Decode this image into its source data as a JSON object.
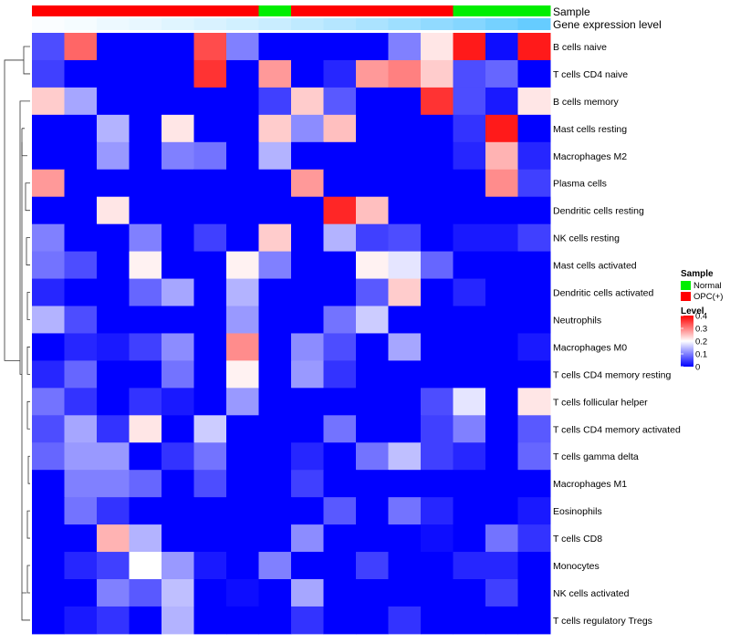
{
  "chart_data": {
    "type": "heatmap",
    "annotation_labels": {
      "sample": "Sample",
      "gene_expression": "Gene expression level"
    },
    "sample_groups": [
      "OPC(+)",
      "OPC(+)",
      "OPC(+)",
      "OPC(+)",
      "OPC(+)",
      "OPC(+)",
      "OPC(+)",
      "Normal",
      "OPC(+)",
      "OPC(+)",
      "OPC(+)",
      "OPC(+)",
      "OPC(+)",
      "Normal",
      "Normal",
      "Normal"
    ],
    "gene_expression_level": [
      0.02,
      0.04,
      0.07,
      0.09,
      0.12,
      0.15,
      0.18,
      0.21,
      0.25,
      0.29,
      0.33,
      0.38,
      0.43,
      0.48,
      0.54,
      0.6
    ],
    "rows": [
      "B cells naive",
      "T cells CD4 naive",
      "B cells memory",
      "Mast cells resting",
      "Macrophages M2",
      "Plasma cells",
      "Dendritic cells resting",
      "NK cells resting",
      "Mast cells activated",
      "Dendritic cells activated",
      "Neutrophils",
      "Macrophages M0",
      "T cells CD4 memory resting",
      "T cells follicular helper",
      "T cells CD4 memory activated",
      "T cells gamma delta",
      "Macrophages M1",
      "Eosinophils",
      "T cells CD8",
      "Monocytes",
      "NK cells activated",
      "T cells regulatory  Tregs"
    ],
    "values": [
      [
        0.06,
        0.32,
        0,
        0,
        0,
        0.34,
        0.1,
        0,
        0,
        0,
        0,
        0.1,
        0.22,
        0.38,
        0.01,
        0.38
      ],
      [
        0.05,
        0,
        0,
        0,
        0,
        0.36,
        0,
        0.28,
        0,
        0.03,
        0.28,
        0.3,
        0.24,
        0.06,
        0.08,
        0
      ],
      [
        0.24,
        0.13,
        0,
        0,
        0,
        0,
        0,
        0.05,
        0.24,
        0.07,
        0,
        0,
        0.36,
        0.06,
        0.02,
        0.22
      ],
      [
        0,
        0,
        0.14,
        0,
        0.22,
        0,
        0,
        0.24,
        0.11,
        0.25,
        0,
        0,
        0,
        0.04,
        0.38,
        0
      ],
      [
        0,
        0,
        0.12,
        0,
        0.1,
        0.09,
        0,
        0.14,
        0,
        0,
        0,
        0,
        0,
        0.03,
        0.26,
        0.03
      ],
      [
        0.28,
        0,
        0,
        0,
        0,
        0,
        0,
        0,
        0.28,
        0,
        0,
        0,
        0,
        0,
        0.29,
        0.05
      ],
      [
        0,
        0,
        0.22,
        0,
        0,
        0,
        0,
        0,
        0,
        0.37,
        0.25,
        0,
        0,
        0,
        0,
        0
      ],
      [
        0.1,
        0,
        0,
        0.1,
        0,
        0.05,
        0,
        0.24,
        0,
        0.14,
        0.05,
        0.06,
        0,
        0.02,
        0.02,
        0.05
      ],
      [
        0.09,
        0.06,
        0,
        0.21,
        0,
        0,
        0.21,
        0.1,
        0,
        0,
        0.21,
        0.18,
        0.08,
        0,
        0,
        0
      ],
      [
        0.03,
        0,
        0,
        0.08,
        0.13,
        0,
        0.14,
        0,
        0,
        0,
        0.07,
        0.24,
        0,
        0.03,
        0,
        0
      ],
      [
        0.14,
        0.06,
        0,
        0,
        0,
        0,
        0.12,
        0,
        0,
        0.09,
        0.16,
        0,
        0,
        0,
        0,
        0
      ],
      [
        0,
        0.03,
        0.02,
        0.05,
        0.11,
        0,
        0.29,
        0,
        0.11,
        0.06,
        0,
        0.13,
        0,
        0,
        0,
        0.02
      ],
      [
        0.03,
        0.08,
        0,
        0,
        0.09,
        0,
        0.21,
        0,
        0.12,
        0.04,
        0,
        0,
        0,
        0,
        0,
        0
      ],
      [
        0.09,
        0.04,
        0,
        0.04,
        0.02,
        0,
        0.12,
        0,
        0,
        0,
        0,
        0,
        0.06,
        0.18,
        0,
        0.22
      ],
      [
        0.06,
        0.13,
        0.04,
        0.22,
        0,
        0.16,
        0,
        0,
        0,
        0.09,
        0,
        0,
        0.05,
        0.1,
        0,
        0.07
      ],
      [
        0.08,
        0.12,
        0.12,
        0,
        0.04,
        0.09,
        0,
        0,
        0.03,
        0,
        0.09,
        0.15,
        0.05,
        0.03,
        0,
        0.08
      ],
      [
        0,
        0.1,
        0.1,
        0.08,
        0,
        0.06,
        0,
        0,
        0.05,
        0,
        0,
        0,
        0,
        0,
        0,
        0
      ],
      [
        0,
        0.09,
        0.04,
        0,
        0,
        0,
        0,
        0,
        0,
        0.07,
        0,
        0.09,
        0.03,
        0,
        0,
        0.02
      ],
      [
        0,
        0,
        0.26,
        0.14,
        0,
        0,
        0,
        0,
        0.11,
        0,
        0,
        0,
        0.01,
        0,
        0.09,
        0.04
      ],
      [
        0,
        0.03,
        0.05,
        0.2,
        0.12,
        0.02,
        0,
        0.1,
        0,
        0,
        0.05,
        0,
        0,
        0.03,
        0.03,
        0
      ],
      [
        0,
        0,
        0.1,
        0.07,
        0.15,
        0,
        0.01,
        0,
        0.13,
        0,
        0,
        0,
        0,
        0,
        0.05,
        0
      ],
      [
        0,
        0.02,
        0.04,
        0,
        0.14,
        0,
        0,
        0,
        0.04,
        0,
        0,
        0.04,
        0,
        0,
        0,
        0
      ]
    ],
    "legend": {
      "sample_title": "Sample",
      "sample_entries": [
        {
          "label": "Normal",
          "color": "#00ee00"
        },
        {
          "label": "OPC(+)",
          "color": "#ff0000"
        }
      ],
      "level_title": "Level",
      "level_ticks": [
        "0.4",
        "0.3",
        "0.2",
        "0.1",
        "0"
      ],
      "level_tick_values": [
        0.4,
        0.3,
        0.2,
        0.1,
        0
      ]
    },
    "scale": {
      "min": 0,
      "mid": 0.2,
      "max": 0.4,
      "low_color": "#0000ff",
      "mid_color": "#ffffff",
      "high_color": "#ff0000"
    },
    "gene_expression_colors": {
      "low": "#ffffff",
      "high": "#66ccff"
    }
  }
}
